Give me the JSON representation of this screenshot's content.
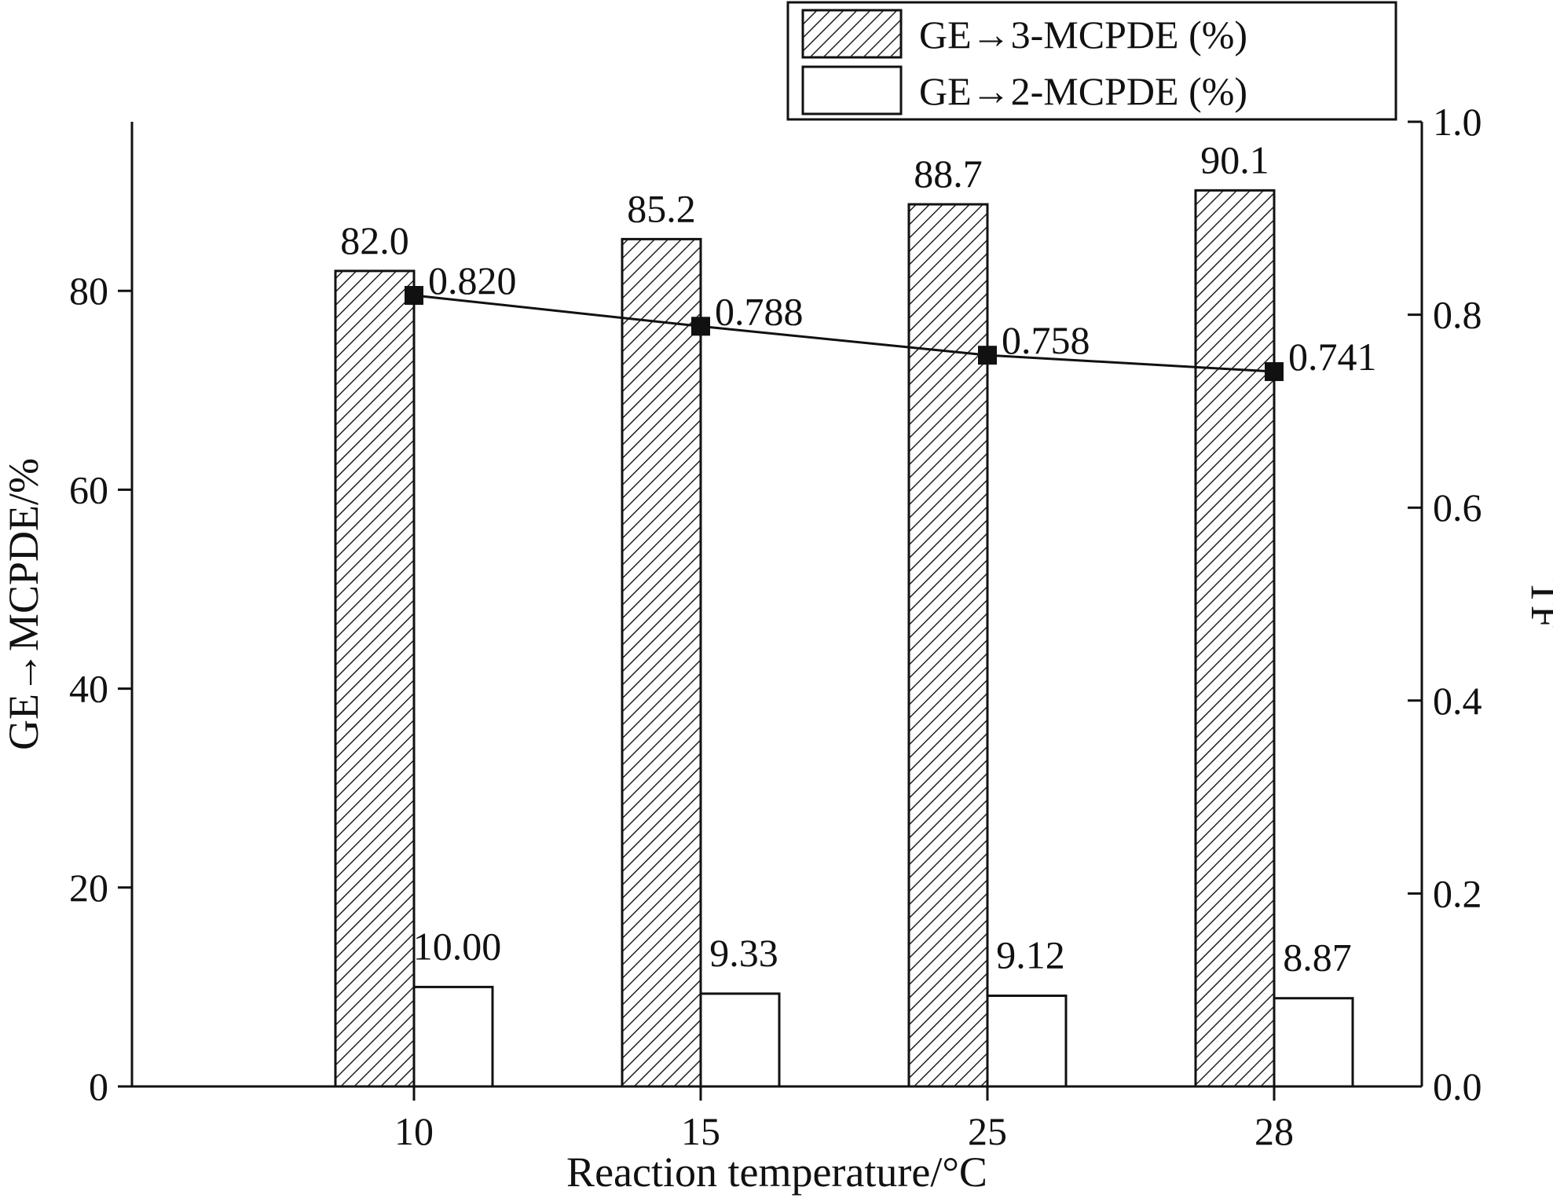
{
  "chart_data": {
    "type": "bar",
    "xlabel": "Reaction temperature/°C",
    "ylabel": "GE→MCPDE/%",
    "y2label": "TF",
    "categories": [
      "10",
      "15",
      "25",
      "28"
    ],
    "ylim": [
      0,
      97
    ],
    "y2lim": [
      0,
      1.0
    ],
    "yticks": [
      "0",
      "20",
      "40",
      "60",
      "80"
    ],
    "y2ticks": [
      "0.0",
      "0.2",
      "0.4",
      "0.6",
      "0.8",
      "1.0"
    ],
    "legend_position": "top-right",
    "series": [
      {
        "name": "GE→3-MCPDE (%)",
        "type": "bar",
        "axis": "left",
        "pattern": "hatched",
        "values": [
          82.0,
          85.2,
          88.7,
          90.1
        ],
        "labels": [
          "82.0",
          "85.2",
          "88.7",
          "90.1"
        ]
      },
      {
        "name": "GE→2-MCPDE (%)",
        "type": "bar",
        "axis": "left",
        "pattern": "open",
        "values": [
          10.0,
          9.33,
          9.12,
          8.87
        ],
        "labels": [
          "10.00",
          "9.33",
          "9.12",
          "8.87"
        ]
      },
      {
        "type": "line",
        "axis": "right",
        "marker": "square",
        "values": [
          0.82,
          0.788,
          0.758,
          0.741
        ],
        "labels": [
          "0.820",
          "0.788",
          "0.758",
          "0.741"
        ]
      }
    ],
    "colors": {
      "stroke": "#111111",
      "fill": "#ffffff"
    }
  }
}
